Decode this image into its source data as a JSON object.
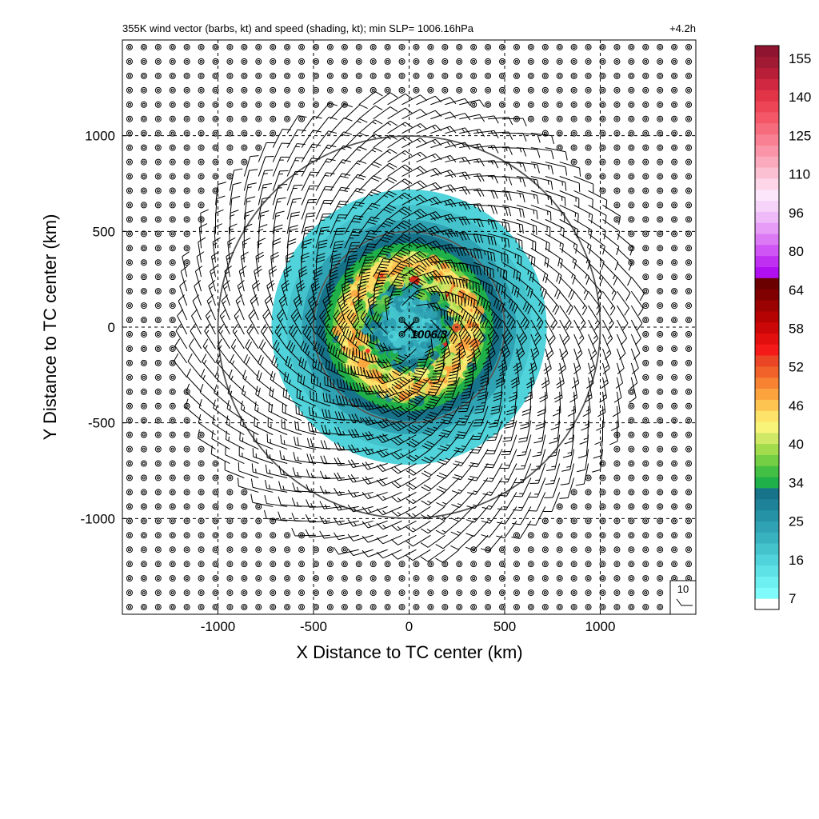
{
  "chart_data": {
    "type": "heatmap",
    "title_left": "355K wind vector (barbs, kt) and speed (shading, kt); min SLP= 1006.16hPa",
    "title_right": "+4.2h",
    "xlabel": "X Distance to TC center (km)",
    "ylabel": "Y Distance to TC center (km)",
    "xlim": [
      -1500,
      1500
    ],
    "ylim": [
      -1500,
      1500
    ],
    "x_ticks": [
      -1000,
      -500,
      0,
      500,
      1000
    ],
    "y_ticks": [
      -1000,
      -500,
      0,
      500,
      1000
    ],
    "x_tick_labels": [
      "-1000",
      "-500",
      "0",
      "500",
      "1000"
    ],
    "y_tick_labels": [
      "-1000",
      "-500",
      "0",
      "500",
      "1000"
    ],
    "grid": "dashed",
    "range_rings_km": [
      500,
      1000
    ],
    "center_marker": "cross",
    "center_label": "1006.3",
    "barb_key_label": "10",
    "barb_spacing_km": 75,
    "barbs_profile": {
      "max_speed_radius_km": 350,
      "calm_outer_radius_km": 1200,
      "description": "counter-clockwise cyclonic flow with outward turning"
    },
    "shading_rings": [
      {
        "r_km": 720,
        "speed": 12
      },
      {
        "r_km": 640,
        "speed": 16
      },
      {
        "r_km": 560,
        "speed": 22
      },
      {
        "r_km": 490,
        "speed": 30
      },
      {
        "r_km": 440,
        "speed": 34
      },
      {
        "r_km": 400,
        "speed": 40
      },
      {
        "r_km": 370,
        "speed": 50
      },
      {
        "r_km": 330,
        "speed": 58
      },
      {
        "r_km": 280,
        "speed": 46
      },
      {
        "r_km": 230,
        "speed": 34
      },
      {
        "r_km": 170,
        "speed": 22
      },
      {
        "r_km": 110,
        "speed": 14
      }
    ],
    "colorbar": {
      "units": "kt",
      "tick_labels": [
        "7",
        "16",
        "25",
        "34",
        "40",
        "46",
        "52",
        "58",
        "64",
        "80",
        "96",
        "110",
        "125",
        "140",
        "155"
      ],
      "colors": [
        "#ffffff",
        "#7ffbfb",
        "#6ef0f0",
        "#5ee2e6",
        "#50d3da",
        "#44c3cd",
        "#39b2c0",
        "#2fa2b3",
        "#2692a6",
        "#1e8398",
        "#17738a",
        "#1fb04a",
        "#43c043",
        "#74cf45",
        "#a2dc4d",
        "#cfe865",
        "#f8f47a",
        "#fde36a",
        "#fdc452",
        "#fca33e",
        "#f78232",
        "#f0622a",
        "#ea4626",
        "#f51a1a",
        "#e20f0f",
        "#cc0707",
        "#b50303",
        "#9b0202",
        "#800000",
        "#6a0000",
        "#b00ff2",
        "#c030f2",
        "#cf55f4",
        "#dc7af5",
        "#e79cf7",
        "#efbaf8",
        "#f6d4f9",
        "#fbe6fb",
        "#fdd6e7",
        "#fcc0d3",
        "#fbaabd",
        "#fa94a8",
        "#f98092",
        "#f76c7d",
        "#f45868",
        "#ee4556",
        "#e23447",
        "#d02840",
        "#b81e38",
        "#a11a33",
        "#8f1430"
      ]
    }
  }
}
